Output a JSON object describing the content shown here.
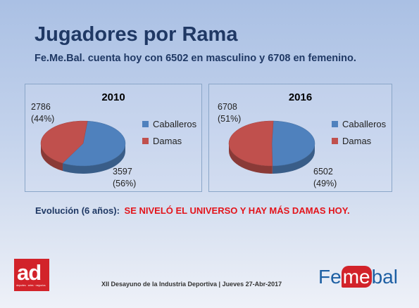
{
  "slide": {
    "title": "Jugadores por Rama",
    "subtitle": "Fe.Me.Bal. cuenta hoy con 6502 en masculino  y 6708 en femenino.",
    "evolution_label": "Evolución  (6 años):",
    "evolution_text": "SE NIVELÓ EL UNIVERSO Y HAY MÁS DAMAS HOY.",
    "footer": "XII Desayuno de la Industria Deportiva | Jueves 27-Abr-2017",
    "logo_left": "ad",
    "logo_left_tagline": "deportes · artes · negocios",
    "logo_right": [
      "Fe",
      "me",
      "bal"
    ]
  },
  "colors": {
    "caballeros": "#4f81bd",
    "damas": "#c0504d",
    "title": "#1f3864",
    "highlight": "#e3141b"
  },
  "chart_data": [
    {
      "type": "pie",
      "title": "2010",
      "categories": [
        "Caballeros",
        "Damas"
      ],
      "values": [
        3597,
        2786
      ],
      "labels": [
        [
          "3597",
          "(56%)"
        ],
        [
          "2786",
          "(44%)"
        ]
      ],
      "legend_position": "right",
      "style": "3d"
    },
    {
      "type": "pie",
      "title": "2016",
      "categories": [
        "Caballeros",
        "Damas"
      ],
      "values": [
        6502,
        6708
      ],
      "labels": [
        [
          "6502",
          "(49%)"
        ],
        [
          "6708",
          "(51%)"
        ]
      ],
      "legend_position": "right",
      "style": "3d"
    }
  ]
}
